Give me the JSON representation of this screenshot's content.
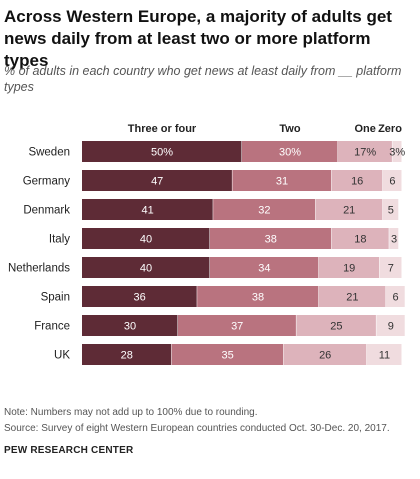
{
  "title": "Across Western Europe, a majority of adults get news daily from at least two or more platform types",
  "subtitle": "% of adults in each country who get news at least daily from __ platform types",
  "note": "Note: Numbers may not add up to 100% due to rounding.",
  "source": "Source: Survey of eight Western European countries conducted Oct. 30-Dec. 20, 2017.",
  "credit": "PEW RESEARCH CENTER",
  "chart_data": {
    "type": "bar",
    "orientation": "horizontal",
    "stacked": true,
    "categories": [
      "Sweden",
      "Germany",
      "Denmark",
      "Italy",
      "Netherlands",
      "Spain",
      "France",
      "UK"
    ],
    "series": [
      {
        "name": "Three or four",
        "color": "#5e2b36",
        "values": [
          50,
          47,
          41,
          40,
          40,
          36,
          30,
          28
        ],
        "labels": [
          "50%",
          "47",
          "41",
          "40",
          "40",
          "36",
          "30",
          "28"
        ]
      },
      {
        "name": "Two",
        "color": "#b9737f",
        "values": [
          30,
          31,
          32,
          38,
          34,
          38,
          37,
          35
        ],
        "labels": [
          "30%",
          "31",
          "32",
          "38",
          "34",
          "38",
          "37",
          "35"
        ]
      },
      {
        "name": "One",
        "color": "#ddb3bb",
        "values": [
          17,
          16,
          21,
          18,
          19,
          21,
          25,
          26
        ],
        "labels": [
          "17%",
          "16",
          "21",
          "18",
          "19",
          "21",
          "25",
          "26"
        ]
      },
      {
        "name": "Zero",
        "color": "#f0dcdf",
        "values": [
          3,
          6,
          5,
          3,
          7,
          6,
          9,
          11
        ],
        "labels": [
          "3%",
          "6",
          "5",
          "3",
          "7",
          "6",
          "9",
          "11"
        ]
      }
    ],
    "xlim": [
      0,
      100
    ],
    "grid": false,
    "legend": "top"
  }
}
